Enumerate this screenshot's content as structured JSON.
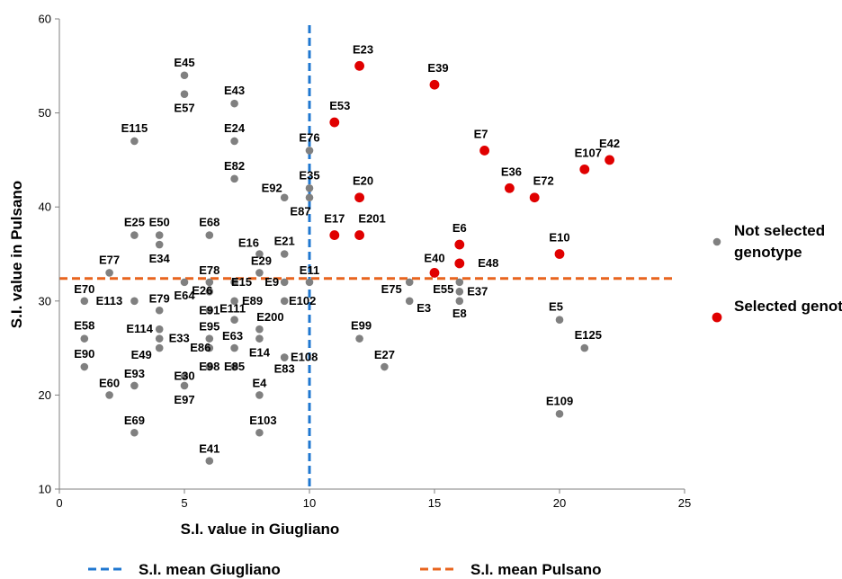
{
  "chart_data": {
    "type": "scatter",
    "title": "",
    "xlabel": "S.I. value in Giugliano",
    "ylabel": "S.I. value in Pulsano",
    "xlim": [
      0,
      25
    ],
    "ylim": [
      10,
      60
    ],
    "xticks": [
      0,
      5,
      10,
      15,
      20,
      25
    ],
    "yticks": [
      10,
      20,
      30,
      40,
      50,
      60
    ],
    "grid": false,
    "legend_placement": "right",
    "series": [
      {
        "name": "Not selected genotype",
        "color": "#808080",
        "points": [
          {
            "label": "E45",
            "x": 5,
            "y": 54
          },
          {
            "label": "E57",
            "x": 5,
            "y": 52
          },
          {
            "label": "E43",
            "x": 7,
            "y": 51
          },
          {
            "label": "E115",
            "x": 3,
            "y": 47
          },
          {
            "label": "E24",
            "x": 7,
            "y": 47
          },
          {
            "label": "E76",
            "x": 10,
            "y": 46
          },
          {
            "label": "E82",
            "x": 7,
            "y": 43
          },
          {
            "label": "E35",
            "x": 10,
            "y": 42
          },
          {
            "label": "E92",
            "x": 9,
            "y": 41
          },
          {
            "label": "E87",
            "x": 10,
            "y": 41
          },
          {
            "label": "E25",
            "x": 3,
            "y": 37
          },
          {
            "label": "E50",
            "x": 4,
            "y": 37
          },
          {
            "label": "E68",
            "x": 6,
            "y": 37
          },
          {
            "label": "E34",
            "x": 4,
            "y": 36
          },
          {
            "label": "E16",
            "x": 8,
            "y": 35
          },
          {
            "label": "E21",
            "x": 9,
            "y": 35
          },
          {
            "label": "E77",
            "x": 2,
            "y": 33
          },
          {
            "label": "E29",
            "x": 8,
            "y": 33
          },
          {
            "label": "E78",
            "x": 6,
            "y": 32
          },
          {
            "label": "E15",
            "x": 7,
            "y": 32
          },
          {
            "label": "E9",
            "x": 9,
            "y": 32
          },
          {
            "label": "E11",
            "x": 10,
            "y": 32
          },
          {
            "label": "E75",
            "x": 14,
            "y": 32
          },
          {
            "label": "E55",
            "x": 16,
            "y": 32
          },
          {
            "label": "E64",
            "x": 5,
            "y": 32
          },
          {
            "label": "E26",
            "x": 6,
            "y": 31
          },
          {
            "label": "E37",
            "x": 16,
            "y": 31
          },
          {
            "label": "E70",
            "x": 1,
            "y": 30
          },
          {
            "label": "E113",
            "x": 3,
            "y": 30
          },
          {
            "label": "E89",
            "x": 7,
            "y": 30
          },
          {
            "label": "E102",
            "x": 9,
            "y": 30
          },
          {
            "label": "E3",
            "x": 14,
            "y": 30
          },
          {
            "label": "E8",
            "x": 16,
            "y": 30
          },
          {
            "label": "E79",
            "x": 4,
            "y": 29
          },
          {
            "label": "E91",
            "x": 6,
            "y": 29
          },
          {
            "label": "E111",
            "x": 7,
            "y": 28
          },
          {
            "label": "E5",
            "x": 20,
            "y": 28
          },
          {
            "label": "E114",
            "x": 4,
            "y": 27
          },
          {
            "label": "E200",
            "x": 8,
            "y": 27
          },
          {
            "label": "E58",
            "x": 1,
            "y": 26
          },
          {
            "label": "E33",
            "x": 4,
            "y": 26
          },
          {
            "label": "E95",
            "x": 6,
            "y": 26
          },
          {
            "label": "E63",
            "x": 7,
            "y": 25
          },
          {
            "label": "E99",
            "x": 12,
            "y": 26
          },
          {
            "label": "E14",
            "x": 8,
            "y": 26
          },
          {
            "label": "E49",
            "x": 4,
            "y": 25
          },
          {
            "label": "E125",
            "x": 21,
            "y": 25
          },
          {
            "label": "E108",
            "x": 9,
            "y": 24
          },
          {
            "label": "E86",
            "x": 6,
            "y": 25
          },
          {
            "label": "E90",
            "x": 1,
            "y": 23
          },
          {
            "label": "E98",
            "x": 6,
            "y": 23
          },
          {
            "label": "E85",
            "x": 7,
            "y": 23
          },
          {
            "label": "E27",
            "x": 13,
            "y": 23
          },
          {
            "label": "E83",
            "x": 9,
            "y": 24
          },
          {
            "label": "E30",
            "x": 5,
            "y": 22
          },
          {
            "label": "E93",
            "x": 3,
            "y": 21
          },
          {
            "label": "E97",
            "x": 5,
            "y": 21
          },
          {
            "label": "E60",
            "x": 2,
            "y": 20
          },
          {
            "label": "E4",
            "x": 8,
            "y": 20
          },
          {
            "label": "E109",
            "x": 20,
            "y": 18
          },
          {
            "label": "E69",
            "x": 3,
            "y": 16
          },
          {
            "label": "E103",
            "x": 8,
            "y": 16
          },
          {
            "label": "E41",
            "x": 6,
            "y": 13
          }
        ]
      },
      {
        "name": "Selected genotype",
        "color": "#e00000",
        "points": [
          {
            "label": "E23",
            "x": 12,
            "y": 55
          },
          {
            "label": "E39",
            "x": 15,
            "y": 53
          },
          {
            "label": "E53",
            "x": 11,
            "y": 49
          },
          {
            "label": "E7",
            "x": 17,
            "y": 46
          },
          {
            "label": "E107",
            "x": 21,
            "y": 44
          },
          {
            "label": "E42",
            "x": 22,
            "y": 45
          },
          {
            "label": "E36",
            "x": 18,
            "y": 42
          },
          {
            "label": "E72",
            "x": 19,
            "y": 41
          },
          {
            "label": "E20",
            "x": 12,
            "y": 41
          },
          {
            "label": "E17",
            "x": 11,
            "y": 37
          },
          {
            "label": "E201",
            "x": 12,
            "y": 37
          },
          {
            "label": "E6",
            "x": 16,
            "y": 36
          },
          {
            "label": "E10",
            "x": 20,
            "y": 35
          },
          {
            "label": "E48",
            "x": 16,
            "y": 34
          },
          {
            "label": "E40",
            "x": 15,
            "y": 33
          }
        ]
      }
    ],
    "reference_lines": [
      {
        "name": "S.I. mean Giugliano",
        "axis": "x",
        "value": 10,
        "color": "#1f77d0",
        "style": "dashed"
      },
      {
        "name": "S.I. mean Pulsano",
        "axis": "y",
        "value": 32.4,
        "color": "#e8641e",
        "style": "dashed"
      }
    ]
  }
}
